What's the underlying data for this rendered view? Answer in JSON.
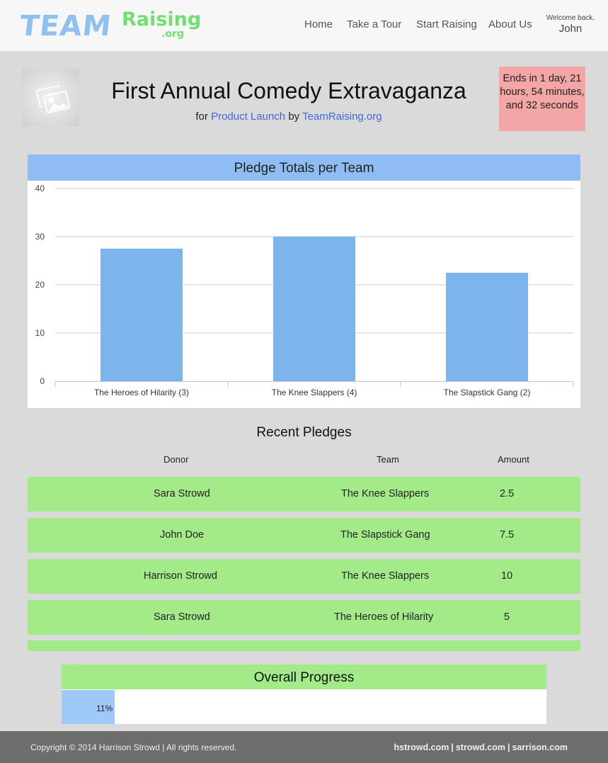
{
  "header": {
    "logo": {
      "team": "TEAM",
      "raising": "Raising",
      "org": ".org"
    },
    "nav": [
      "Home",
      "Take a Tour",
      "Start Raising",
      "About Us"
    ],
    "welcome_line": "Welcome back,",
    "welcome_user": "John"
  },
  "event": {
    "title": "First Annual Comedy Extravaganza",
    "for_word": "for",
    "campaign": "Product Launch",
    "by_word": "by",
    "org": "TeamRaising.org",
    "countdown": "Ends in 1 day, 21 hours, 54 minutes, and 32 seconds",
    "image_icon": "image-placeholder-icon"
  },
  "chart_data": {
    "type": "bar",
    "title": "Pledge Totals per Team",
    "categories": [
      "The Heroes of Hilarity (3)",
      "The Knee Slappers (4)",
      "The Slapstick Gang (2)"
    ],
    "values": [
      27.5,
      30,
      22.5
    ],
    "ylim": [
      0,
      40
    ],
    "yticks": [
      0,
      10,
      20,
      30,
      40
    ],
    "grid": true,
    "bar_color": "#7db4eb"
  },
  "recent": {
    "title": "Recent Pledges",
    "columns": {
      "donor": "Donor",
      "team": "Team",
      "amount": "Amount"
    },
    "rows": [
      {
        "donor": "Sara Strowd",
        "team": "The Knee Slappers",
        "amount": "2.5"
      },
      {
        "donor": "John Doe",
        "team": "The Slapstick Gang",
        "amount": "7.5"
      },
      {
        "donor": "Harrison Strowd",
        "team": "The Knee Slappers",
        "amount": "10"
      },
      {
        "donor": "Sara Strowd",
        "team": "The Heroes of Hilarity",
        "amount": "5"
      }
    ]
  },
  "progress": {
    "title": "Overall Progress",
    "label": "11%",
    "value": 0.11
  },
  "footer": {
    "copyright": "Copyright © 2014 Harrison Strowd  |  All rights reserved.",
    "links": [
      "hstrowd.com",
      "strowd.com",
      "sarrison.com"
    ]
  }
}
